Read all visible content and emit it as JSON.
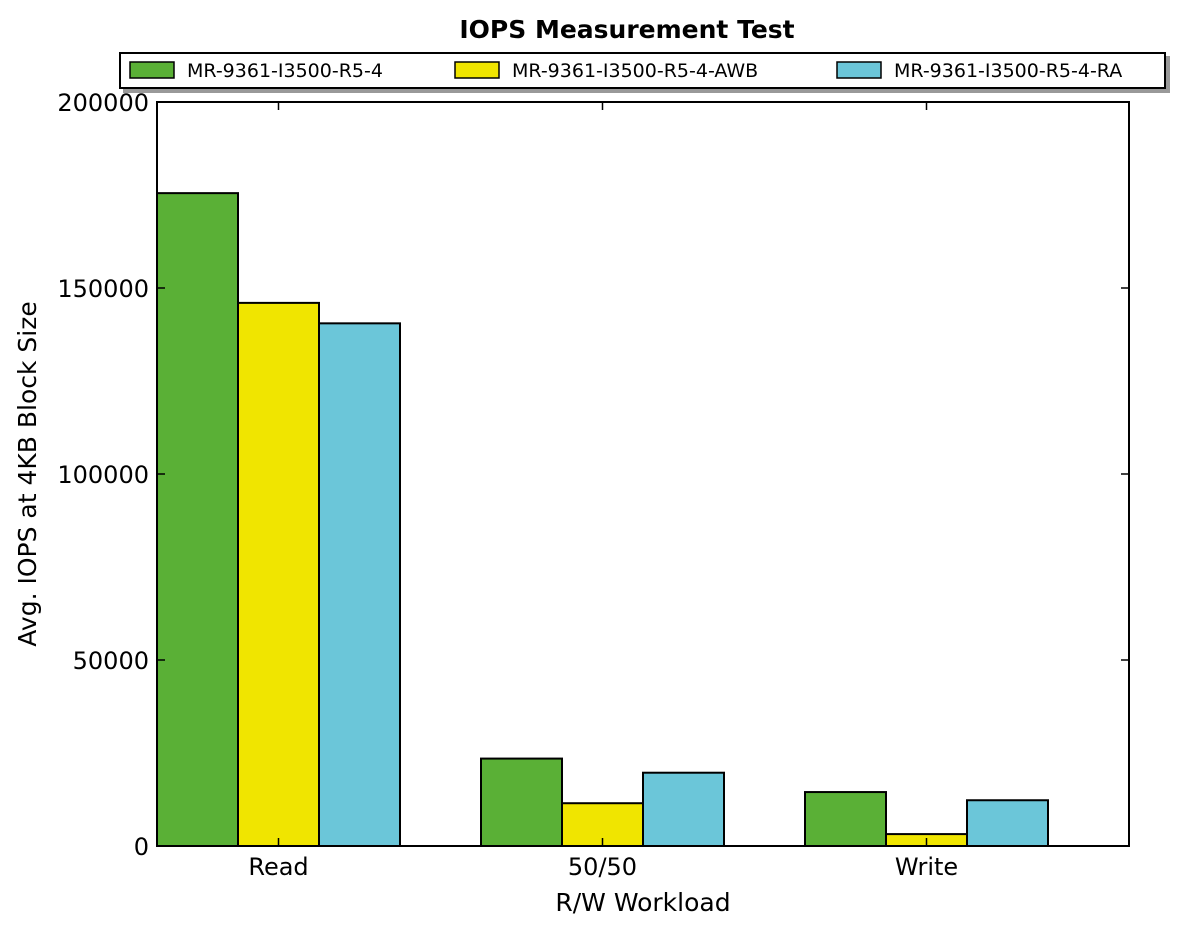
{
  "chart_data": {
    "type": "bar",
    "title": "IOPS Measurement Test",
    "xlabel": "R/W Workload",
    "ylabel": "Avg. IOPS at 4KB Block Size",
    "categories": [
      "Read",
      "50/50",
      "Write"
    ],
    "ylim": [
      0,
      200000
    ],
    "yticks": [
      0,
      50000,
      100000,
      150000,
      200000
    ],
    "ytick_labels": [
      "0",
      "50000",
      "100000",
      "150000",
      "200000"
    ],
    "grid": false,
    "legend_position": "top",
    "series": [
      {
        "name": "MR-9361-I3500-R5-4",
        "color": "#5ab036",
        "values": [
          175500,
          23500,
          14500
        ]
      },
      {
        "name": "MR-9361-I3500-R5-4-AWB",
        "color": "#f0e500",
        "values": [
          146000,
          11500,
          3200
        ]
      },
      {
        "name": "MR-9361-I3500-R5-4-RA",
        "color": "#6bc6d9",
        "values": [
          140500,
          19700,
          12300
        ]
      }
    ]
  }
}
